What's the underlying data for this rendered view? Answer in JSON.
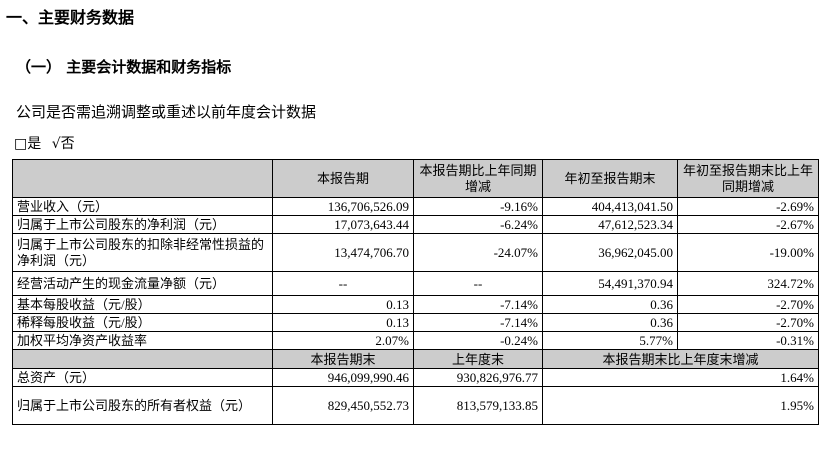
{
  "section_title": "一、主要财务数据",
  "subsection_title": "（一） 主要会计数据和财务指标",
  "restatement_question": "公司是否需追溯调整或重述以前年度会计数据",
  "options": {
    "yes_box": "□",
    "yes_label": "是",
    "no_check": "√",
    "no_label": "否"
  },
  "table1": {
    "headers": [
      "",
      "本报告期",
      "本报告期比上年同期增减",
      "年初至报告期末",
      "年初至报告期末比上年同期增减"
    ],
    "rows": [
      [
        "营业收入（元）",
        "136,706,526.09",
        "-9.16%",
        "404,413,041.50",
        "-2.69%"
      ],
      [
        "归属于上市公司股东的净利润（元）",
        "17,073,643.44",
        "-6.24%",
        "47,612,523.34",
        "-2.67%"
      ],
      [
        "归属于上市公司股东的扣除非经常性损益的净利润（元）",
        "13,474,706.70",
        "-24.07%",
        "36,962,045.00",
        "-19.00%"
      ],
      [
        "经营活动产生的现金流量净额（元）",
        "--",
        "--",
        "54,491,370.94",
        "324.72%"
      ],
      [
        "基本每股收益（元/股）",
        "0.13",
        "-7.14%",
        "0.36",
        "-2.70%"
      ],
      [
        "稀释每股收益（元/股）",
        "0.13",
        "-7.14%",
        "0.36",
        "-2.70%"
      ],
      [
        "加权平均净资产收益率",
        "2.07%",
        "-0.24%",
        "5.77%",
        "-0.31%"
      ]
    ]
  },
  "table2": {
    "headers": [
      "",
      "本报告期末",
      "上年度末",
      "本报告期末比上年度末增减"
    ],
    "rows": [
      [
        "总资产（元）",
        "946,099,990.46",
        "930,826,976.77",
        "1.64%"
      ],
      [
        "归属于上市公司股东的所有者权益（元）",
        "829,450,552.73",
        "813,579,133.85",
        "1.95%"
      ]
    ]
  }
}
